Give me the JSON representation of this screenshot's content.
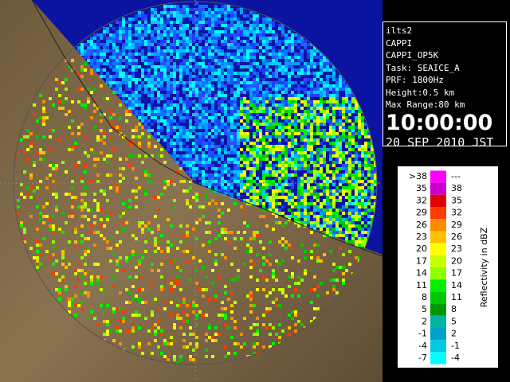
{
  "info": {
    "lines": [
      "ilts2",
      "CAPPI",
      "CAPPI_OP5K",
      "Task: SEAICE_A",
      "PRF: 1800Hz",
      "Height:0.5 km",
      "Max Range:80 km"
    ],
    "time": "10:00:00",
    "date": "20 SEP 2010 JST"
  },
  "legend": {
    "title": "Reflectivity in dBZ",
    "rows": [
      {
        "low": ">38",
        "high": "---",
        "color": "#ff00ff"
      },
      {
        "low": "35",
        "high": "38",
        "color": "#c800c8"
      },
      {
        "low": "32",
        "high": "35",
        "color": "#e00000"
      },
      {
        "low": "29",
        "high": "32",
        "color": "#ff3c00"
      },
      {
        "low": "26",
        "high": "29",
        "color": "#ff8c00"
      },
      {
        "low": "23",
        "high": "26",
        "color": "#ffc000"
      },
      {
        "low": "20",
        "high": "23",
        "color": "#ffff00"
      },
      {
        "low": "17",
        "high": "20",
        "color": "#c8ff00"
      },
      {
        "low": "14",
        "high": "17",
        "color": "#8cff00"
      },
      {
        "low": "11",
        "high": "14",
        "color": "#00f000"
      },
      {
        "low": "8",
        "high": "11",
        "color": "#00c800"
      },
      {
        "low": "5",
        "high": "8",
        "color": "#009600"
      },
      {
        "low": "2",
        "high": "5",
        "color": "#00b4a0"
      },
      {
        "low": "-1",
        "high": "2",
        "color": "#00a0c8"
      },
      {
        "low": "-4",
        "high": "-1",
        "color": "#00c8e6"
      },
      {
        "low": "-7",
        "high": "-4",
        "color": "#00ffff"
      }
    ]
  }
}
